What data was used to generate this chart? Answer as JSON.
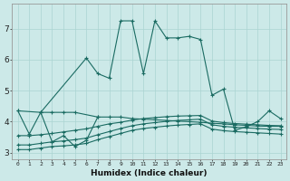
{
  "xlabel": "Humidex (Indice chaleur)",
  "ylabel": "",
  "xlim": [
    -0.5,
    23.5
  ],
  "ylim": [
    2.8,
    7.8
  ],
  "xticks": [
    0,
    1,
    2,
    3,
    4,
    5,
    6,
    7,
    8,
    9,
    10,
    11,
    12,
    13,
    14,
    15,
    16,
    17,
    18,
    19,
    20,
    21,
    22,
    23
  ],
  "yticks": [
    3,
    4,
    5,
    6,
    7
  ],
  "bg_color": "#cce9e8",
  "grid_color": "#aad4d2",
  "line_color": "#1a6b62",
  "line1_x": [
    0,
    1,
    2,
    3,
    4,
    5,
    7,
    8,
    9,
    10,
    11,
    12,
    13,
    14,
    15,
    16,
    17,
    18,
    19,
    20,
    21,
    22,
    23
  ],
  "line1_y": [
    4.35,
    3.6,
    4.3,
    4.3,
    4.3,
    4.3,
    4.15,
    4.15,
    4.15,
    4.1,
    4.08,
    4.06,
    4.04,
    4.02,
    4.0,
    3.98,
    3.95,
    3.93,
    3.9,
    3.88,
    3.86,
    3.85,
    3.85
  ],
  "line2_x": [
    0,
    2,
    6,
    7,
    8,
    9,
    10,
    11,
    12,
    13,
    14,
    15,
    16,
    17,
    18,
    19,
    20,
    21,
    22,
    23
  ],
  "line2_y": [
    4.35,
    4.3,
    6.05,
    5.55,
    5.4,
    7.25,
    7.25,
    5.55,
    7.25,
    6.7,
    6.7,
    6.75,
    6.65,
    4.85,
    5.05,
    3.72,
    3.84,
    4.0,
    4.35,
    4.1
  ],
  "line3_x": [
    0,
    1,
    2,
    3,
    4,
    5,
    6,
    7,
    8,
    9,
    10,
    11,
    12,
    13,
    14,
    15,
    16,
    17,
    18,
    19,
    20,
    21,
    22,
    23
  ],
  "line3_y": [
    3.55,
    3.55,
    3.58,
    3.62,
    3.67,
    3.72,
    3.77,
    3.85,
    3.93,
    3.98,
    4.05,
    4.1,
    4.13,
    4.16,
    4.18,
    4.19,
    4.2,
    4.02,
    3.97,
    3.94,
    3.92,
    3.9,
    3.88,
    3.87
  ],
  "line4_x": [
    0,
    1,
    2,
    3,
    4,
    5,
    6,
    7,
    8,
    9,
    10,
    11,
    12,
    13,
    14,
    15,
    16,
    17,
    18,
    19,
    20,
    21,
    22,
    23
  ],
  "line4_y": [
    3.25,
    3.25,
    3.3,
    3.35,
    3.38,
    3.42,
    3.47,
    3.58,
    3.68,
    3.78,
    3.87,
    3.93,
    3.97,
    4.01,
    4.04,
    4.06,
    4.08,
    3.9,
    3.85,
    3.82,
    3.8,
    3.78,
    3.76,
    3.75
  ],
  "line5_x": [
    0,
    1,
    2,
    3,
    4,
    5,
    6,
    7,
    8,
    9,
    10,
    11,
    12,
    13,
    14,
    15,
    16,
    17,
    18,
    19,
    20,
    21,
    22,
    23
  ],
  "line5_y": [
    3.1,
    3.1,
    3.15,
    3.2,
    3.22,
    3.25,
    3.3,
    3.42,
    3.52,
    3.62,
    3.72,
    3.78,
    3.82,
    3.86,
    3.89,
    3.91,
    3.93,
    3.76,
    3.71,
    3.68,
    3.66,
    3.64,
    3.62,
    3.6
  ],
  "line_spike_x": [
    2,
    3,
    4,
    5,
    6,
    7
  ],
  "line_spike_y": [
    4.3,
    3.35,
    3.55,
    3.2,
    3.4,
    4.15
  ]
}
